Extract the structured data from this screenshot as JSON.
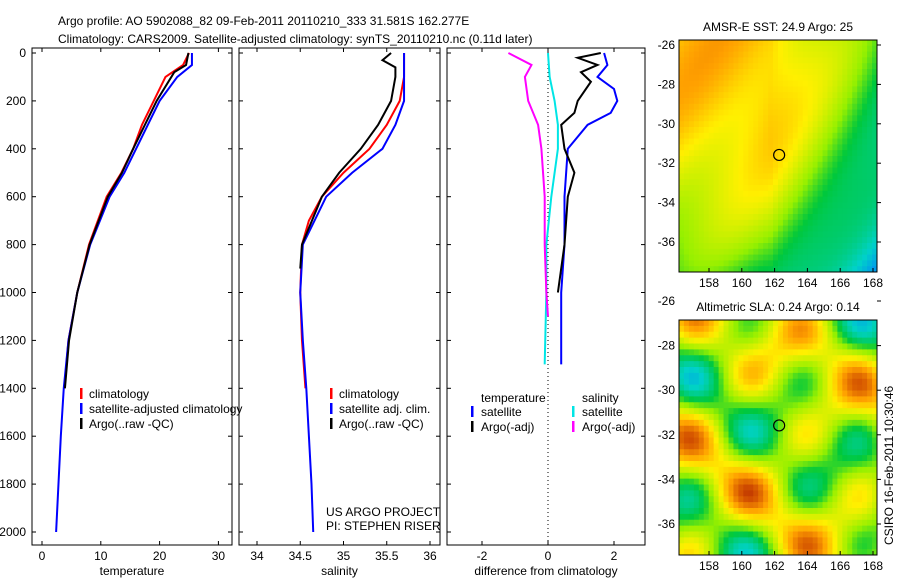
{
  "title_line1": "Argo profile: AO 5902088_82 09-Feb-2011 20110210_333 31.581S 162.277E",
  "title_line2": "Climatology: CARS2009. Satellite-adjusted climatology: synTS_20110210.nc (0.11d later)",
  "side_label": "CSIRO 16-Feb-2011 10:30:46",
  "colors": {
    "climatology": "#ff0000",
    "satellite": "#0000ff",
    "argo": "#000000",
    "sal_satellite": "#00e5e5",
    "sal_argo": "#ff00ff"
  },
  "chart_data": [
    {
      "type": "line",
      "xlabel": "temperature",
      "ylabel": "",
      "xlim": [
        -2,
        32
      ],
      "ylim": [
        2050,
        0
      ],
      "xticks": [
        "0",
        "10",
        "20",
        "30"
      ],
      "yticks": [
        "0",
        "200",
        "400",
        "600",
        "800",
        "1000",
        "1200",
        "1400",
        "1600",
        "1800",
        "2000"
      ],
      "legend": [
        "climatology",
        "satellite-adjusted climatology",
        "Argo(..raw -QC)"
      ],
      "series": [
        {
          "name": "climatology",
          "color": "#ff0000",
          "depth": [
            0,
            50,
            100,
            200,
            300,
            400,
            500,
            600,
            800,
            1000,
            1200,
            1400
          ],
          "values": [
            25,
            24,
            21,
            19,
            17,
            15.5,
            13.5,
            11,
            8,
            6,
            4.5,
            3.8
          ]
        },
        {
          "name": "satellite-adjusted climatology",
          "color": "#0000ff",
          "depth": [
            0,
            50,
            100,
            200,
            300,
            400,
            500,
            600,
            800,
            1000,
            1200,
            1400,
            1600,
            1800,
            2000
          ],
          "values": [
            25.5,
            25.5,
            23,
            20,
            18,
            16,
            14,
            11.5,
            8.2,
            6,
            4.5,
            3.7,
            3.2,
            2.8,
            2.4
          ]
        },
        {
          "name": "Argo(..raw -QC)",
          "color": "#000000",
          "depth": [
            0,
            50,
            80,
            100,
            200,
            300,
            400,
            500,
            600,
            800,
            1000,
            1200,
            1400
          ],
          "values": [
            24.9,
            24.5,
            22.5,
            22,
            19.5,
            17.5,
            15.5,
            13.6,
            11.2,
            8.1,
            6,
            4.6,
            3.9
          ]
        }
      ]
    },
    {
      "type": "line",
      "xlabel": "salinity",
      "xlim": [
        33.8,
        36.1
      ],
      "ylim": [
        2050,
        0
      ],
      "xticks": [
        "34",
        "34.5",
        "35",
        "35.5",
        "36"
      ],
      "legend": [
        "climatology",
        "satellite adj. clim.",
        "Argo(..raw -QC)"
      ],
      "annotation": [
        "US ARGO PROJECT",
        "PI: STEPHEN RISER"
      ],
      "series": [
        {
          "name": "climatology",
          "color": "#ff0000",
          "depth": [
            0,
            100,
            200,
            300,
            400,
            500,
            600,
            700,
            800,
            1000,
            1200,
            1400
          ],
          "values": [
            35.7,
            35.7,
            35.65,
            35.5,
            35.3,
            35.0,
            34.75,
            34.6,
            34.52,
            34.5,
            34.52,
            34.56
          ]
        },
        {
          "name": "satellite adj. clim.",
          "color": "#0000ff",
          "depth": [
            0,
            100,
            200,
            300,
            400,
            500,
            600,
            800,
            1000,
            1200,
            1400,
            1600,
            1800,
            2000
          ],
          "values": [
            35.7,
            35.7,
            35.7,
            35.6,
            35.45,
            35.1,
            34.8,
            34.53,
            34.5,
            34.53,
            34.57,
            34.6,
            34.63,
            34.65
          ]
        },
        {
          "name": "Argo(..raw -QC)",
          "color": "#000000",
          "depth": [
            0,
            30,
            60,
            100,
            200,
            300,
            400,
            500,
            600,
            800,
            900
          ],
          "values": [
            35.55,
            35.45,
            35.6,
            35.6,
            35.55,
            35.4,
            35.2,
            34.95,
            34.75,
            34.52,
            34.5
          ]
        }
      ]
    },
    {
      "type": "line",
      "xlabel": "difference from climatology",
      "xlim": [
        -3,
        3
      ],
      "ylim": [
        2050,
        0
      ],
      "xticks": [
        "-2",
        "0",
        "2"
      ],
      "legend_headers": [
        "temperature",
        "salinity"
      ],
      "legend": [
        "satellite",
        "Argo(-adj)",
        "satellite",
        "Argo(-adj)"
      ],
      "series": [
        {
          "name": "temperature satellite",
          "color": "#0000ff",
          "depth": [
            0,
            50,
            100,
            150,
            200,
            250,
            300,
            400,
            600,
            800,
            1000,
            1200,
            1300
          ],
          "values": [
            1.7,
            1.8,
            1.5,
            2.0,
            2.1,
            1.9,
            1.2,
            0.6,
            0.5,
            0.5,
            0.4,
            0.4,
            0.4
          ]
        },
        {
          "name": "temperature Argo(-adj)",
          "color": "#000000",
          "depth": [
            0,
            20,
            50,
            80,
            120,
            200,
            250,
            300,
            400,
            500,
            600,
            800,
            1000
          ],
          "values": [
            1.6,
            0.9,
            1.5,
            1.0,
            1.3,
            0.9,
            0.8,
            0.4,
            0.5,
            0.8,
            0.6,
            0.5,
            0.3
          ]
        },
        {
          "name": "salinity satellite",
          "color": "#00e5e5",
          "depth": [
            0,
            100,
            200,
            300,
            400,
            600,
            800,
            1000,
            1300
          ],
          "values": [
            0,
            0.05,
            0.2,
            0.3,
            0.3,
            0.1,
            -0.05,
            -0.05,
            -0.1
          ]
        },
        {
          "name": "salinity Argo(-adj)",
          "color": "#ff00ff",
          "depth": [
            0,
            50,
            100,
            200,
            300,
            400,
            600,
            800,
            1000,
            1100
          ],
          "values": [
            -1.2,
            -0.5,
            -0.7,
            -0.6,
            -0.3,
            -0.2,
            -0.1,
            -0.1,
            -0.05,
            0
          ]
        }
      ]
    },
    {
      "type": "heatmap",
      "title": "AMSR-E SST: 24.9 Argo: 25",
      "xticks": [
        "158",
        "160",
        "162",
        "164",
        "166",
        "168"
      ],
      "yticks": [
        "-26",
        "-28",
        "-30",
        "-32",
        "-34",
        "-36"
      ],
      "marker": {
        "lon": 162.277,
        "lat": -31.581
      }
    },
    {
      "type": "heatmap",
      "title": "Altimetric SLA: 0.24 Argo: 0.14",
      "xticks": [
        "158",
        "160",
        "162",
        "164",
        "166",
        "168"
      ],
      "yticks": [
        "-26",
        "-28",
        "-30",
        "-32",
        "-34",
        "-36"
      ],
      "marker": {
        "lon": 162.277,
        "lat": -31.581
      }
    }
  ]
}
